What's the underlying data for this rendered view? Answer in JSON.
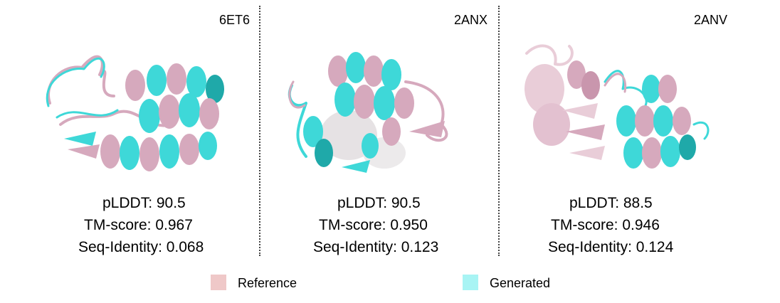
{
  "panels": [
    {
      "pdb_id": "6ET6",
      "plddt": "pLDDT: 90.5",
      "tm_score": "TM-score: 0.967",
      "seq_identity": "Seq-Identity: 0.068"
    },
    {
      "pdb_id": "2ANX",
      "plddt": "pLDDT: 90.5",
      "tm_score": "TM-score: 0.950",
      "seq_identity": "Seq-Identity: 0.123"
    },
    {
      "pdb_id": "2ANV",
      "plddt": "pLDDT: 88.5",
      "tm_score": "TM-score: 0.946",
      "seq_identity": "Seq-Identity: 0.124"
    }
  ],
  "legend": [
    {
      "label": "Reference",
      "color": "#efc8c8"
    },
    {
      "label": "Generated",
      "color": "#a8f4f4"
    }
  ],
  "colors": {
    "reference": "#d6a9bd",
    "reference_light": "#e9cdd8",
    "generated": "#3ed8d8",
    "generated_dark": "#1fa9a9"
  }
}
